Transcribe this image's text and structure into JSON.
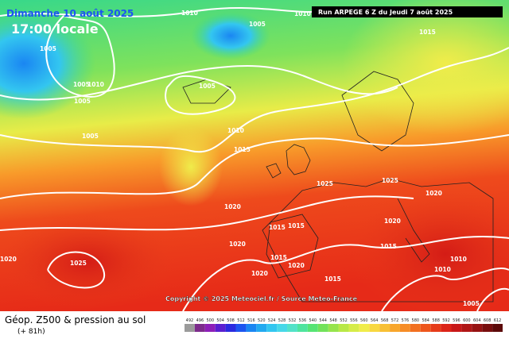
{
  "header": {
    "date": "Dimanche 10 août 2025",
    "time": "17:00 locale",
    "run": "Run ARPEGE 6 Z du Jeudi 7 août 2025"
  },
  "map": {
    "copyright": "Copyright © 2025 Meteociel.fr / Source Meteo-France",
    "isobar_labels": [
      "1010",
      "1010",
      "1015",
      "1005",
      "1005",
      "1005",
      "1010",
      "1005",
      "1005",
      "1005",
      "1010",
      "1015",
      "1020",
      "1020",
      "1025",
      "1025",
      "1020",
      "1025",
      "1020",
      "1015",
      "1015",
      "1020",
      "1015",
      "1015",
      "1020",
      "1020",
      "1015",
      "1010",
      "1005",
      "1010"
    ]
  },
  "footer": {
    "title": "Géop. Z500 & pression au sol",
    "lead": "(+ 81h)"
  },
  "legend": {
    "labels": [
      "492",
      "496",
      "500",
      "504",
      "508",
      "512",
      "516",
      "520",
      "524",
      "528",
      "532",
      "536",
      "540",
      "544",
      "548",
      "552",
      "556",
      "560",
      "564",
      "568",
      "572",
      "576",
      "580",
      "584",
      "588",
      "592",
      "596",
      "600",
      "604",
      "608",
      "612"
    ],
    "colors": [
      "#9b9b9b",
      "#7d2b8c",
      "#8d1fb8",
      "#5a1fd0",
      "#2a2ae0",
      "#1c55f0",
      "#1a86f2",
      "#22aaf0",
      "#33c6f0",
      "#47d8e8",
      "#52e2c8",
      "#4ee49e",
      "#56e474",
      "#72e25a",
      "#96e44c",
      "#b8e846",
      "#d6ec48",
      "#f0ec4a",
      "#f8d840",
      "#f8c034",
      "#f8a62c",
      "#f68c26",
      "#f27020",
      "#ee561c",
      "#e63c1a",
      "#dc2418",
      "#c81818",
      "#b01616",
      "#961212",
      "#780e0e",
      "#5c0a0a"
    ]
  }
}
